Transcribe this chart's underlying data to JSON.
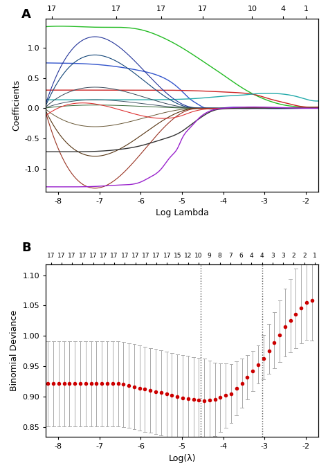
{
  "panel_A": {
    "xlabel": "Log Lambda",
    "ylabel": "Coefficients",
    "xlim": [
      -8.3,
      -1.7
    ],
    "ylim": [
      -1.38,
      1.48
    ],
    "xticks": [
      -8,
      -7,
      -6,
      -5,
      -4,
      -3,
      -2
    ],
    "yticks": [
      -1.0,
      -0.5,
      0.0,
      0.5,
      1.0
    ],
    "top_xtick_positions": [
      -8.15,
      -6.6,
      -5.5,
      -4.5,
      -3.3,
      -2.55,
      -2.0
    ],
    "top_xtick_labels": [
      "17",
      "17",
      "17",
      "17",
      "10",
      "4",
      "1"
    ],
    "label": "A"
  },
  "panel_B": {
    "xlabel": "Log(λ)",
    "ylabel": "Binomial Deviance",
    "xlim": [
      -8.3,
      -1.7
    ],
    "ylim": [
      0.833,
      1.118
    ],
    "xticks": [
      -8,
      -7,
      -6,
      -5,
      -4,
      -3,
      -2
    ],
    "yticks": [
      0.85,
      0.9,
      0.95,
      1.0,
      1.05,
      1.1
    ],
    "top_xtick_labels": [
      "17",
      "17",
      "17",
      "17",
      "17",
      "17",
      "17",
      "17",
      "17",
      "17",
      "17",
      "17",
      "15",
      "12",
      "10",
      "9",
      "8",
      "7",
      "6",
      "4",
      "4",
      "3",
      "3",
      "2",
      "2",
      "1"
    ],
    "vline1": -4.55,
    "vline2": -3.05,
    "label": "B"
  }
}
